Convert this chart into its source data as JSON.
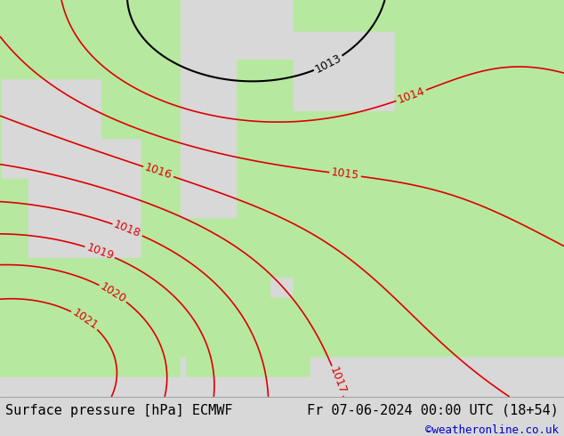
{
  "title_left": "Surface pressure [hPa] ECMWF",
  "title_right": "Fr 07-06-2024 00:00 UTC (18+54)",
  "copyright": "©weatheronline.co.uk",
  "bg_color": "#d8d8d8",
  "land_color": "#b8e8a0",
  "sea_color": "#e8e8e8",
  "contour_color_red": "#dd0000",
  "contour_color_black": "#000000",
  "pressure_min": 1013,
  "pressure_max": 1022,
  "footer_bg": "#ffffff",
  "footer_text_color": "#000000",
  "copyright_color": "#0000cc",
  "font_size_footer": 11,
  "font_size_contour": 9
}
